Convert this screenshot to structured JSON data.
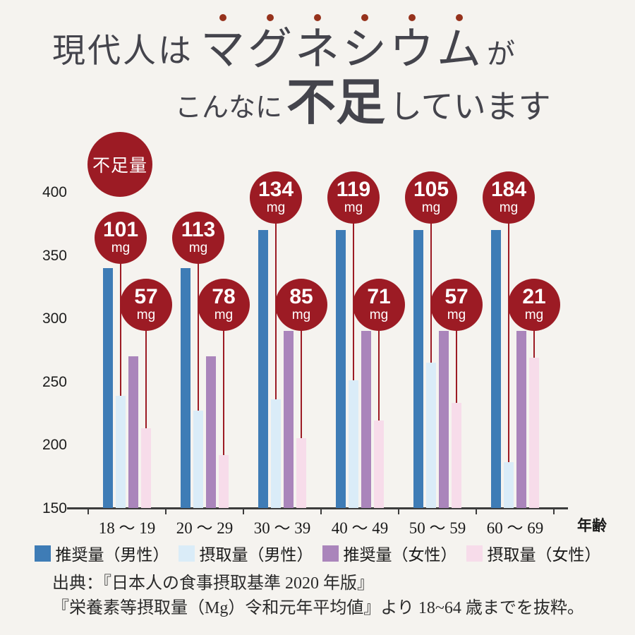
{
  "title": {
    "line1_prefix": "現代人は",
    "line1_emphasis": "マグネシウム",
    "line1_suffix": "が",
    "line2_part1": "こんなに",
    "line2_emphasis": "不足",
    "line2_suffix": "しています"
  },
  "deficiency_badge": "不足量",
  "source": {
    "line1": "出典：『日本人の食事摂取基準 2020 年版』",
    "line2": "『栄養素等摂取量（Mg）令和元年平均値』より 18~64 歳までを抜粋。"
  },
  "colors": {
    "accent_red": "#9c1b24",
    "emphasis_dot": "#96321c",
    "male_recommended": "#3e7cb6",
    "male_intake": "#daecf8",
    "female_recommended": "#aa85bb",
    "female_intake": "#f7dcea",
    "background": "#f5f3ef"
  },
  "chart_data": {
    "type": "bar",
    "title": "現代人はマグネシウムがこんなに不足しています",
    "xlabel": "年齢",
    "ylabel": "",
    "ylim": [
      150,
      400
    ],
    "yticks": [
      400,
      350,
      300,
      250,
      200,
      150
    ],
    "grid": false,
    "legend_position": "bottom",
    "categories": [
      "18 ～ 19",
      "20 ～ 29",
      "30 ～ 39",
      "40 ～ 49",
      "50 ～ 59",
      "60 ～ 69"
    ],
    "series": [
      {
        "name": "推奨量（男性）",
        "color": "#3e7cb6",
        "values": [
          340,
          340,
          370,
          370,
          370,
          370
        ]
      },
      {
        "name": "摂取量（男性）",
        "color": "#daecf8",
        "values": [
          239,
          227,
          236,
          251,
          265,
          186
        ]
      },
      {
        "name": "推奨量（女性）",
        "color": "#aa85bb",
        "values": [
          270,
          270,
          290,
          290,
          290,
          290
        ]
      },
      {
        "name": "摂取量（女性）",
        "color": "#f7dcea",
        "values": [
          213,
          192,
          205,
          219,
          233,
          269
        ]
      }
    ],
    "deficiency_male": [
      101,
      113,
      134,
      119,
      105,
      184
    ],
    "deficiency_female": [
      57,
      78,
      85,
      71,
      57,
      21
    ],
    "deficiency_unit": "mg"
  }
}
